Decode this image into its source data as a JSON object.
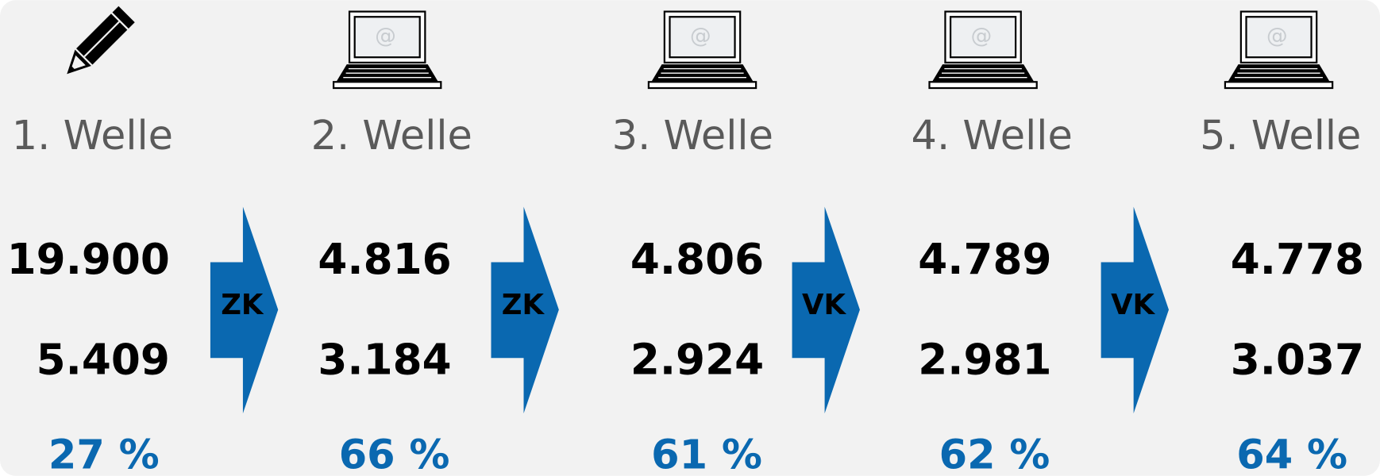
{
  "waves": [
    {
      "label": "1. Welle",
      "total": "19.900",
      "responses": "5.409",
      "rate": "27 %"
    },
    {
      "label": "2. Welle",
      "total": "4.816",
      "responses": "3.184",
      "rate": "66 %"
    },
    {
      "label": "3. Welle",
      "total": "4.806",
      "responses": "2.924",
      "rate": "61 %"
    },
    {
      "label": "4. Welle",
      "total": "4.789",
      "responses": "2.981",
      "rate": "62 %"
    },
    {
      "label": "5. Welle",
      "total": "4.778",
      "responses": "3.037",
      "rate": "64 %"
    }
  ],
  "arrows": [
    "ZK",
    "ZK",
    "VK",
    "VK"
  ]
}
